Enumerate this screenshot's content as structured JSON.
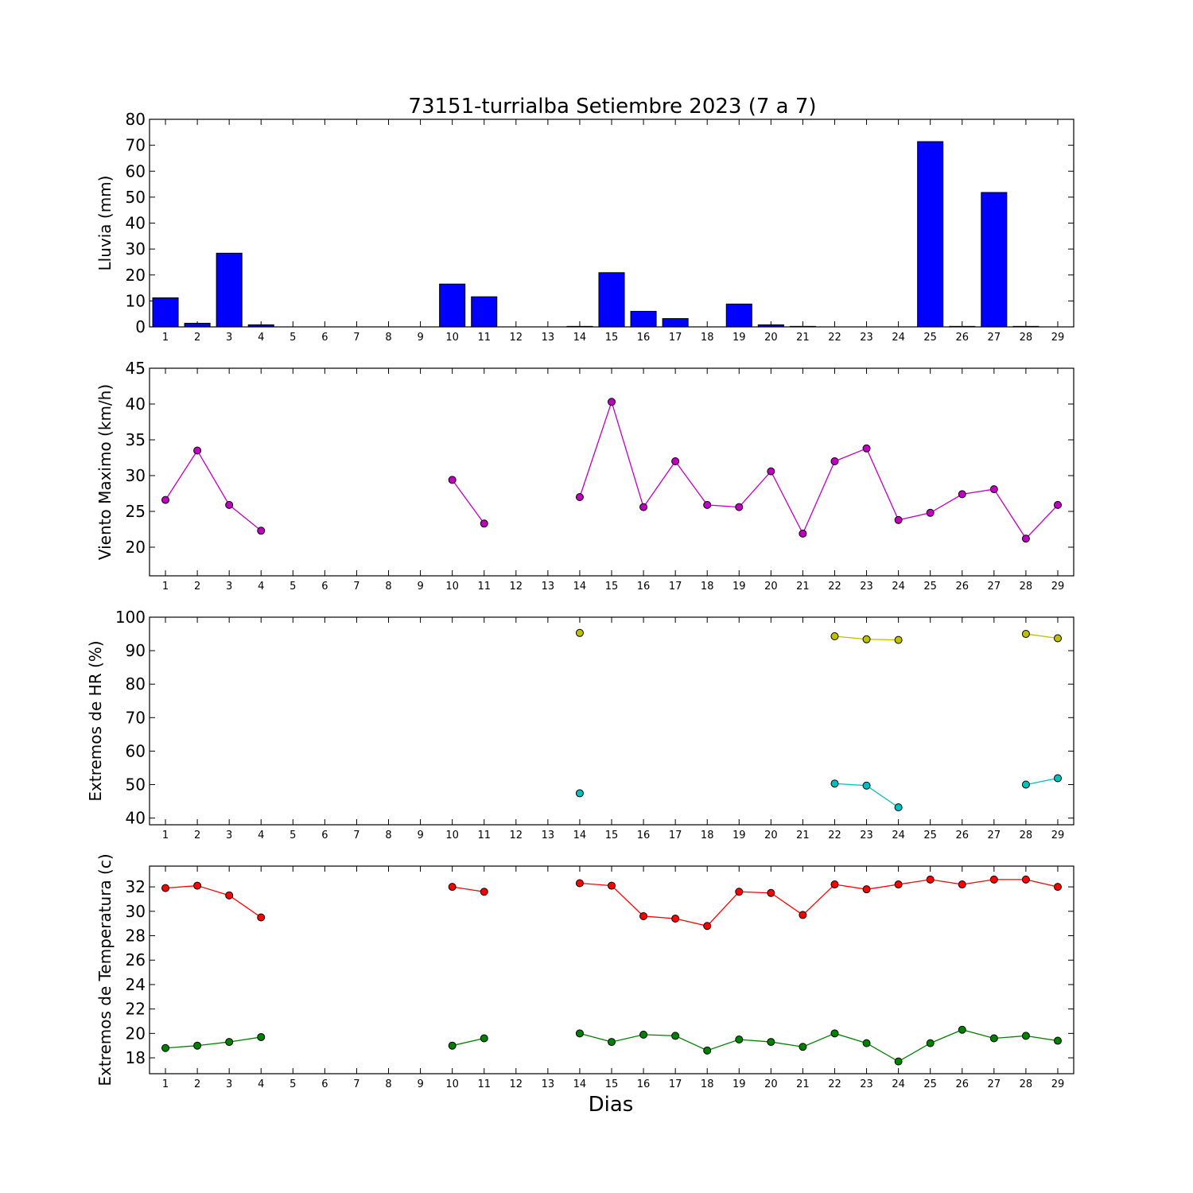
{
  "title": "73151-turrialba Setiembre 2023  (7 a 7)",
  "xlabel": "Dias",
  "colors": {
    "rain": "#0000ff",
    "wind": "#bf00bf",
    "hr_max": "#bfbf00",
    "hr_min": "#00bfbf",
    "temp_max": "#ff0000",
    "temp_min": "#008000"
  },
  "chart_data": [
    {
      "type": "bar",
      "ylabel": "Lluvia (mm)",
      "ylim": [
        0,
        80
      ],
      "yticks": [
        0,
        10,
        20,
        30,
        40,
        50,
        60,
        70,
        80
      ],
      "categories": [
        1,
        2,
        3,
        4,
        5,
        6,
        7,
        8,
        9,
        10,
        11,
        12,
        13,
        14,
        15,
        16,
        17,
        18,
        19,
        20,
        21,
        22,
        23,
        24,
        25,
        26,
        27,
        28,
        29
      ],
      "values": [
        11.2,
        1.4,
        28.4,
        0.8,
        0,
        0,
        0,
        0,
        0,
        16.5,
        11.6,
        0,
        0,
        0.2,
        20.9,
        6.0,
        3.2,
        0,
        8.8,
        0.8,
        0.2,
        0,
        0,
        0,
        71.4,
        0.2,
        51.8,
        0.2,
        0
      ],
      "color": "rain"
    },
    {
      "type": "line",
      "ylabel": "Viento Maximo (km/h)",
      "ylim": [
        16,
        45
      ],
      "yticks": [
        20,
        25,
        30,
        35,
        40,
        45
      ],
      "x": [
        1,
        2,
        3,
        4,
        5,
        6,
        7,
        8,
        9,
        10,
        11,
        12,
        13,
        14,
        15,
        16,
        17,
        18,
        19,
        20,
        21,
        22,
        23,
        24,
        25,
        26,
        27,
        28,
        29
      ],
      "series": [
        {
          "values": [
            26.6,
            33.5,
            25.9,
            22.3,
            null,
            null,
            null,
            null,
            null,
            29.4,
            23.3,
            null,
            null,
            27.0,
            40.3,
            25.6,
            32.0,
            25.9,
            25.6,
            30.6,
            21.9,
            32.0,
            33.8,
            23.8,
            24.8,
            27.4,
            28.1,
            21.2,
            25.9
          ],
          "color": "wind"
        }
      ]
    },
    {
      "type": "line",
      "ylabel": "Extremos de HR (%)",
      "ylim": [
        38,
        100
      ],
      "yticks": [
        40,
        50,
        60,
        70,
        80,
        90,
        100
      ],
      "x": [
        1,
        2,
        3,
        4,
        5,
        6,
        7,
        8,
        9,
        10,
        11,
        12,
        13,
        14,
        15,
        16,
        17,
        18,
        19,
        20,
        21,
        22,
        23,
        24,
        25,
        26,
        27,
        28,
        29
      ],
      "series": [
        {
          "values": [
            null,
            null,
            null,
            null,
            null,
            null,
            null,
            null,
            null,
            null,
            null,
            null,
            null,
            95.3,
            null,
            null,
            null,
            null,
            null,
            null,
            null,
            94.3,
            93.4,
            93.2,
            null,
            null,
            null,
            95.0,
            93.7
          ],
          "color": "hr_max"
        },
        {
          "values": [
            null,
            null,
            null,
            null,
            null,
            null,
            null,
            null,
            null,
            null,
            null,
            null,
            null,
            47.4,
            null,
            null,
            null,
            null,
            null,
            null,
            null,
            50.3,
            49.7,
            43.2,
            null,
            null,
            null,
            50.0,
            51.9
          ],
          "color": "hr_min"
        }
      ]
    },
    {
      "type": "line",
      "ylabel": "Extremos de Temperatura (c)",
      "ylim": [
        16.7,
        33.7
      ],
      "yticks": [
        18,
        20,
        22,
        24,
        26,
        28,
        30,
        32
      ],
      "x": [
        1,
        2,
        3,
        4,
        5,
        6,
        7,
        8,
        9,
        10,
        11,
        12,
        13,
        14,
        15,
        16,
        17,
        18,
        19,
        20,
        21,
        22,
        23,
        24,
        25,
        26,
        27,
        28,
        29
      ],
      "series": [
        {
          "values": [
            31.9,
            32.1,
            31.3,
            29.5,
            null,
            null,
            null,
            null,
            null,
            32.0,
            31.6,
            null,
            null,
            32.3,
            32.1,
            29.6,
            29.4,
            28.8,
            31.6,
            31.5,
            29.7,
            32.2,
            31.8,
            32.2,
            32.6,
            32.2,
            32.6,
            32.6,
            32.0
          ],
          "color": "temp_max"
        },
        {
          "values": [
            18.8,
            19.0,
            19.3,
            19.7,
            null,
            null,
            null,
            null,
            null,
            19.0,
            19.6,
            null,
            null,
            20.0,
            19.3,
            19.9,
            19.8,
            18.6,
            19.5,
            19.3,
            18.9,
            20.0,
            19.2,
            17.7,
            19.2,
            20.3,
            19.6,
            19.8,
            19.4
          ],
          "color": "temp_min"
        }
      ]
    }
  ]
}
